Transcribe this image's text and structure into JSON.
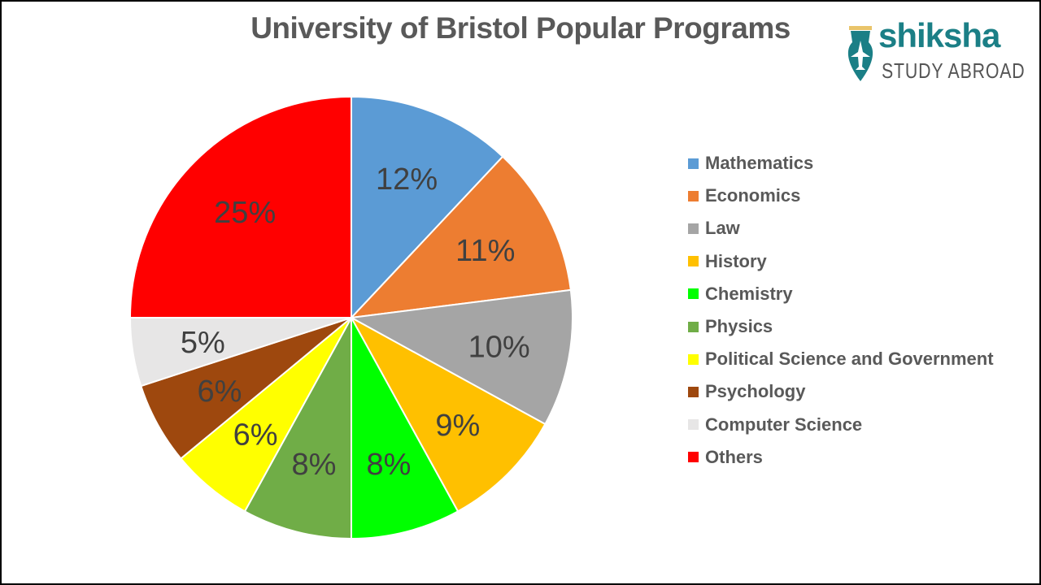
{
  "title": "University of Bristol Popular Programs",
  "logo": {
    "brand": "shiksha",
    "tagline": "STUDY ABROAD",
    "icon": "pen-nib-plane-icon",
    "color": "#1b7f86"
  },
  "chart_data": {
    "type": "pie",
    "title": "University of Bristol Popular Programs",
    "categories": [
      "Mathematics",
      "Economics",
      "Law",
      "History",
      "Chemistry",
      "Physics",
      "Political Science and Government",
      "Psychology",
      "Computer Science",
      "Others"
    ],
    "values": [
      12,
      11,
      10,
      9,
      8,
      8,
      6,
      6,
      5,
      25
    ],
    "labels": [
      "12%",
      "11%",
      "10%",
      "9%",
      "8%",
      "8%",
      "6%",
      "6%",
      "5%",
      "25%"
    ],
    "colors": [
      "#5b9bd5",
      "#ed7d31",
      "#a5a5a5",
      "#ffc000",
      "#00ff00",
      "#70ad47",
      "#ffff00",
      "#9e480e",
      "#e7e6e6",
      "#ff0000"
    ],
    "legend_position": "right",
    "start_angle_deg": 0,
    "direction": "clockwise"
  }
}
